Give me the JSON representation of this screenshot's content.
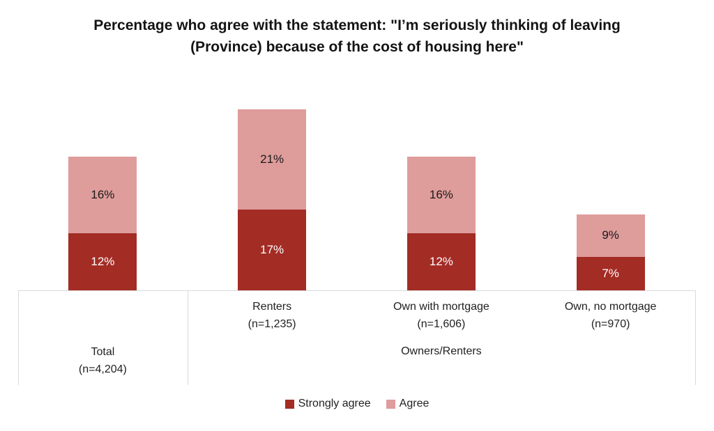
{
  "chart_data": {
    "type": "bar",
    "stacked": true,
    "title": "Percentage who agree with the statement: \"I’m seriously thinking of leaving (Province) because of the cost of housing here\"",
    "categories": [
      {
        "label": "Total",
        "n_label": "(n=4,204)",
        "group": null
      },
      {
        "label": "Renters",
        "n_label": "(n=1,235)",
        "group": "Owners/Renters"
      },
      {
        "label": "Own with mortgage",
        "n_label": "(n=1,606)",
        "group": "Owners/Renters"
      },
      {
        "label": "Own, no mortgage",
        "n_label": "(n=970)",
        "group": "Owners/Renters"
      }
    ],
    "series": [
      {
        "name": "Strongly agree",
        "color": "#A32C25",
        "label_color": "#FFFFFF",
        "values": [
          12,
          17,
          12,
          7
        ]
      },
      {
        "name": "Agree",
        "color": "#DE9C9B",
        "label_color": "#1A1A1A",
        "values": [
          16,
          21,
          16,
          9
        ]
      }
    ],
    "value_suffix": "%",
    "ylim": [
      0,
      40
    ],
    "grid": false,
    "legend_position": "bottom",
    "axis_line_color": "#D9D9D9",
    "label_text_color": "#1F1F1F"
  }
}
